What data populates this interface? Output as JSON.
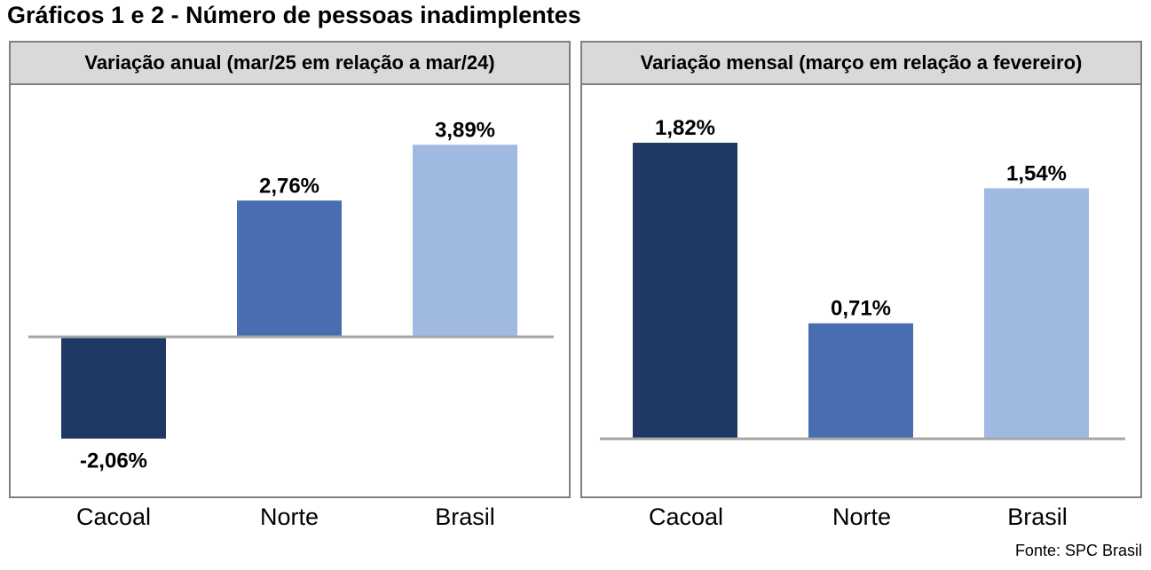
{
  "title": "Gráficos 1 e 2 - Número de pessoas inadimplentes",
  "source": "Fonte: SPC Brasil",
  "colors": {
    "Cacoal": "#1f3864",
    "Norte": "#4a6db2",
    "Brasil": "#a0b9e1",
    "axis": "#a6a6a6"
  },
  "chart_data": [
    {
      "type": "bar",
      "title": "Variação anual (mar/25 em relação a mar/24)",
      "categories": [
        "Cacoal",
        "Norte",
        "Brasil"
      ],
      "values": [
        -2.06,
        2.76,
        3.89
      ],
      "labels": [
        "-2,06%",
        "2,76%",
        "3,89%"
      ],
      "ylim": [
        -2.5,
        4.5
      ],
      "grid": false
    },
    {
      "type": "bar",
      "title": "Variação mensal (março em relação a fevereiro)",
      "categories": [
        "Cacoal",
        "Norte",
        "Brasil"
      ],
      "values": [
        1.82,
        0.71,
        1.54
      ],
      "labels": [
        "1,82%",
        "0,71%",
        "1,54%"
      ],
      "ylim": [
        0,
        2.2
      ],
      "grid": false
    }
  ]
}
